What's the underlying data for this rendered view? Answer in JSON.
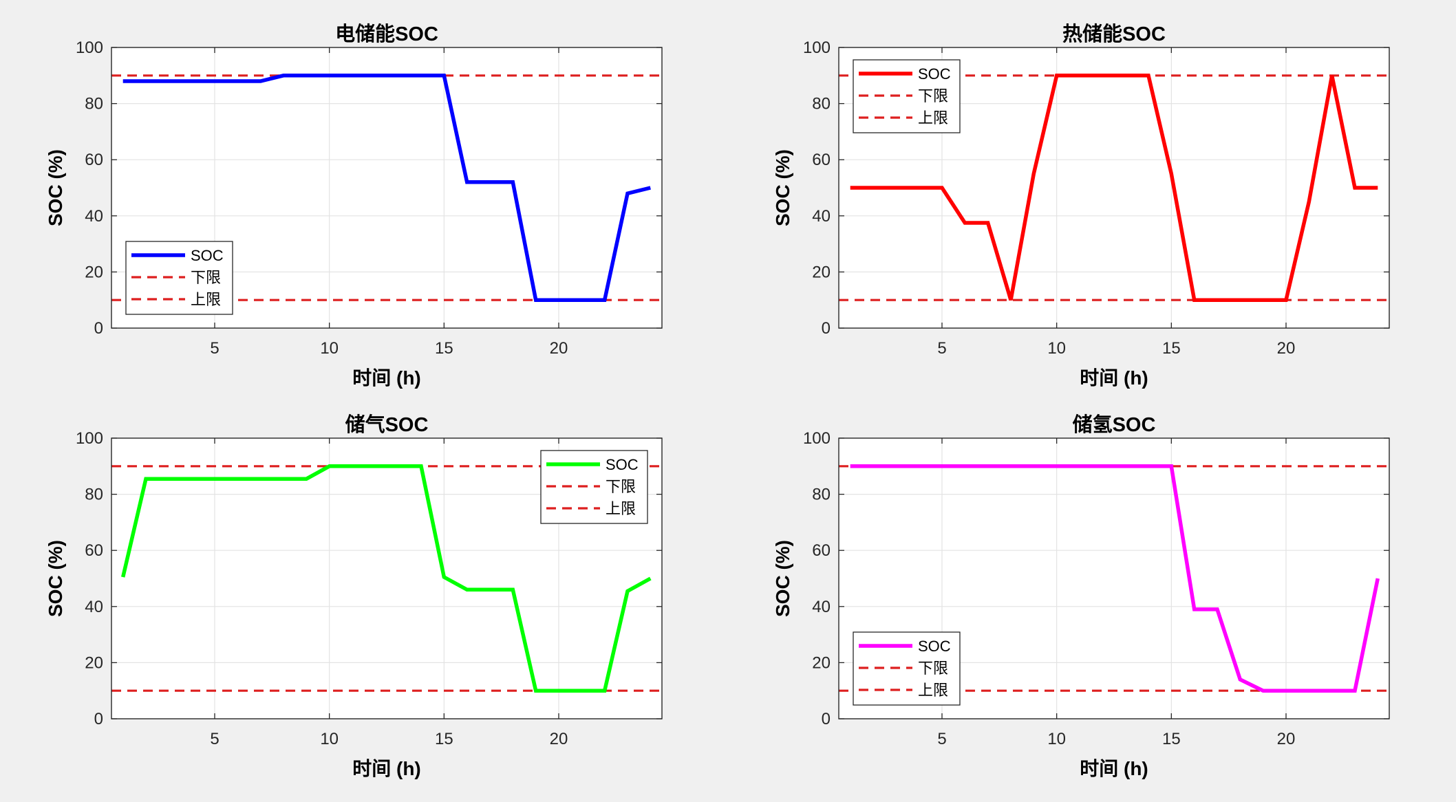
{
  "chart_data": [
    {
      "type": "line",
      "title": "电储能SOC",
      "xlabel": "时间 (h)",
      "ylabel": "SOC (%)",
      "xlim": [
        0.5,
        24.5
      ],
      "ylim": [
        0,
        100
      ],
      "xticks": [
        5,
        10,
        15,
        20
      ],
      "yticks": [
        0,
        20,
        40,
        60,
        80,
        100
      ],
      "grid": true,
      "legend_position": "bottom-left",
      "color": "#0000ff",
      "limit_color": "#dd1f1f",
      "series": [
        {
          "name": "SOC",
          "x": [
            1,
            2,
            3,
            4,
            5,
            6,
            7,
            8,
            9,
            10,
            11,
            12,
            13,
            14,
            15,
            16,
            17,
            18,
            19,
            20,
            21,
            22,
            23,
            24
          ],
          "values": [
            88,
            88,
            88,
            88,
            88,
            88,
            88,
            90,
            90,
            90,
            90,
            90,
            90,
            90,
            90,
            52,
            52,
            52,
            10,
            10,
            10,
            10,
            48,
            50
          ]
        },
        {
          "name": "下限",
          "value": 90
        },
        {
          "name": "上限",
          "value": 10
        }
      ]
    },
    {
      "type": "line",
      "title": "热储能SOC",
      "xlabel": "时间 (h)",
      "ylabel": "SOC (%)",
      "xlim": [
        0.5,
        24.5
      ],
      "ylim": [
        0,
        100
      ],
      "xticks": [
        5,
        10,
        15,
        20
      ],
      "yticks": [
        0,
        20,
        40,
        60,
        80,
        100
      ],
      "grid": true,
      "legend_position": "top-left",
      "color": "#ff0000",
      "limit_color": "#dd1f1f",
      "series": [
        {
          "name": "SOC",
          "x": [
            1,
            2,
            3,
            4,
            5,
            6,
            7,
            8,
            9,
            10,
            11,
            12,
            13,
            14,
            15,
            16,
            17,
            18,
            19,
            20,
            21,
            22,
            23,
            24
          ],
          "values": [
            50,
            50,
            50,
            50,
            50,
            37.5,
            37.5,
            10,
            55,
            90,
            90,
            90,
            90,
            90,
            55,
            10,
            10,
            10,
            10,
            10,
            45,
            90,
            50,
            50
          ]
        },
        {
          "name": "下限",
          "value": 90
        },
        {
          "name": "上限",
          "value": 10
        }
      ]
    },
    {
      "type": "line",
      "title": "储气SOC",
      "xlabel": "时间 (h)",
      "ylabel": "SOC (%)",
      "xlim": [
        0.5,
        24.5
      ],
      "ylim": [
        0,
        100
      ],
      "xticks": [
        5,
        10,
        15,
        20
      ],
      "yticks": [
        0,
        20,
        40,
        60,
        80,
        100
      ],
      "grid": true,
      "legend_position": "top-right",
      "color": "#00ff00",
      "limit_color": "#dd1f1f",
      "series": [
        {
          "name": "SOC",
          "x": [
            1,
            2,
            3,
            4,
            5,
            6,
            7,
            8,
            9,
            10,
            11,
            12,
            13,
            14,
            15,
            16,
            17,
            18,
            19,
            20,
            21,
            22,
            23,
            24
          ],
          "values": [
            50.5,
            85.5,
            85.5,
            85.5,
            85.5,
            85.5,
            85.5,
            85.5,
            85.5,
            90,
            90,
            90,
            90,
            90,
            50.5,
            46,
            46,
            46,
            10,
            10,
            10,
            10,
            45.5,
            50
          ]
        },
        {
          "name": "下限",
          "value": 90
        },
        {
          "name": "上限",
          "value": 10
        }
      ]
    },
    {
      "type": "line",
      "title": "储氢SOC",
      "xlabel": "时间 (h)",
      "ylabel": "SOC (%)",
      "xlim": [
        0.5,
        24.5
      ],
      "ylim": [
        0,
        100
      ],
      "xticks": [
        5,
        10,
        15,
        20
      ],
      "yticks": [
        0,
        20,
        40,
        60,
        80,
        100
      ],
      "grid": true,
      "legend_position": "bottom-left",
      "color": "#ff00ff",
      "limit_color": "#dd1f1f",
      "series": [
        {
          "name": "SOC",
          "x": [
            1,
            2,
            3,
            4,
            5,
            6,
            7,
            8,
            9,
            10,
            11,
            12,
            13,
            14,
            15,
            16,
            17,
            18,
            19,
            20,
            21,
            22,
            23,
            24
          ],
          "values": [
            90,
            90,
            90,
            90,
            90,
            90,
            90,
            90,
            90,
            90,
            90,
            90,
            90,
            90,
            90,
            39,
            39,
            14,
            10,
            10,
            10,
            10,
            10,
            50
          ]
        },
        {
          "name": "下限",
          "value": 90
        },
        {
          "name": "上限",
          "value": 10
        }
      ]
    }
  ]
}
